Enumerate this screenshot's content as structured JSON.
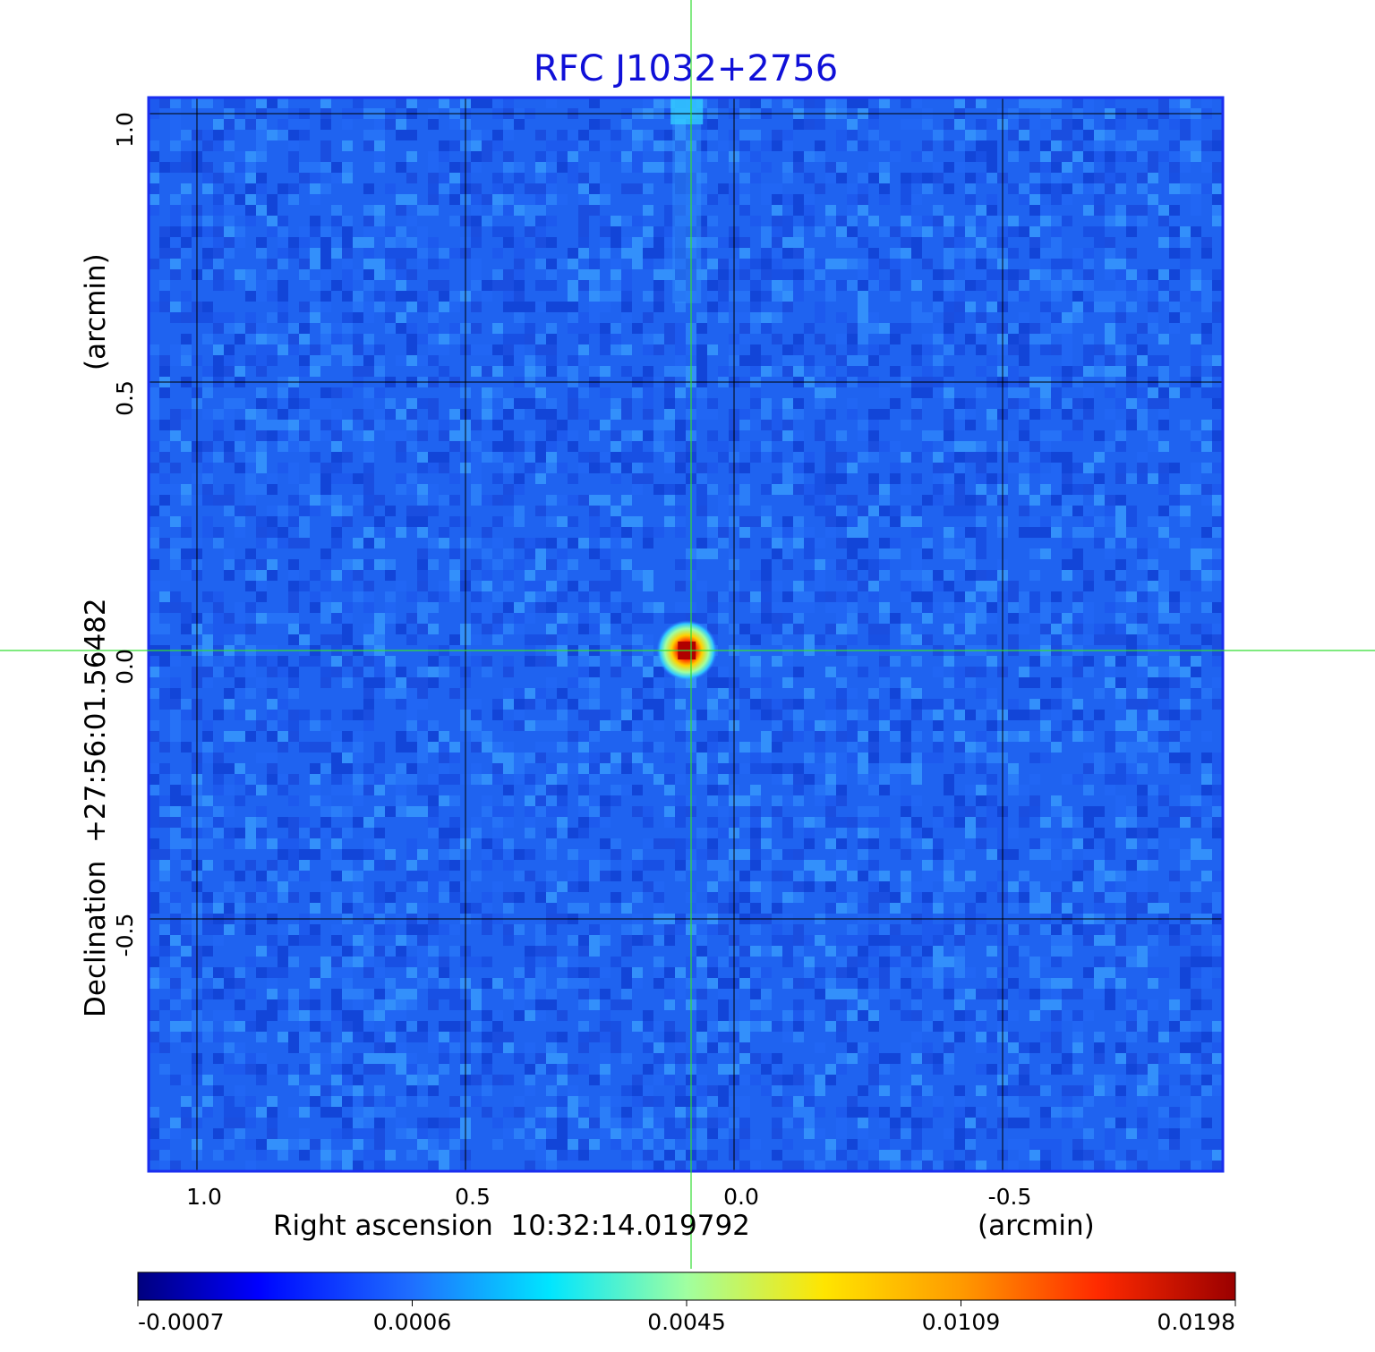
{
  "chart_data": {
    "type": "heatmap",
    "title": "RFC J1032+2756",
    "xlabel_left": "Right ascension  10:32:14.019792",
    "xlabel_right": "(arcmin)",
    "ylabel_left": "Declination  +27:56:01.56482",
    "ylabel_right": "(arcmin)",
    "x_ticks": [
      {
        "value": 1.0,
        "label": "1.0"
      },
      {
        "value": 0.5,
        "label": "0.5"
      },
      {
        "value": 0.0,
        "label": "0.0"
      },
      {
        "value": -0.5,
        "label": "-0.5"
      }
    ],
    "y_ticks": [
      {
        "value": 1.0,
        "label": "1.0"
      },
      {
        "value": 0.5,
        "label": "0.5"
      },
      {
        "value": 0.0,
        "label": "0.0"
      },
      {
        "value": -0.5,
        "label": "-0.5"
      }
    ],
    "xlim": [
      1.09,
      -0.91
    ],
    "ylim": [
      -0.97,
      1.03
    ],
    "grid": true,
    "crosshair": {
      "x": 0.08,
      "y": 0.0
    },
    "source_peak": {
      "x": 0.088,
      "y": 0.0,
      "value": 0.0198
    },
    "colorbar": {
      "ticks": [
        {
          "label": "-0.0007"
        },
        {
          "label": "0.0006"
        },
        {
          "label": "0.0045"
        },
        {
          "label": "0.0109"
        },
        {
          "label": "0.0198"
        }
      ]
    },
    "colormap": "jet",
    "colors": {
      "title": "#1010d8",
      "frame": "#1a2ef0",
      "crosshair": "#33dd33",
      "grid": "#000000"
    }
  }
}
